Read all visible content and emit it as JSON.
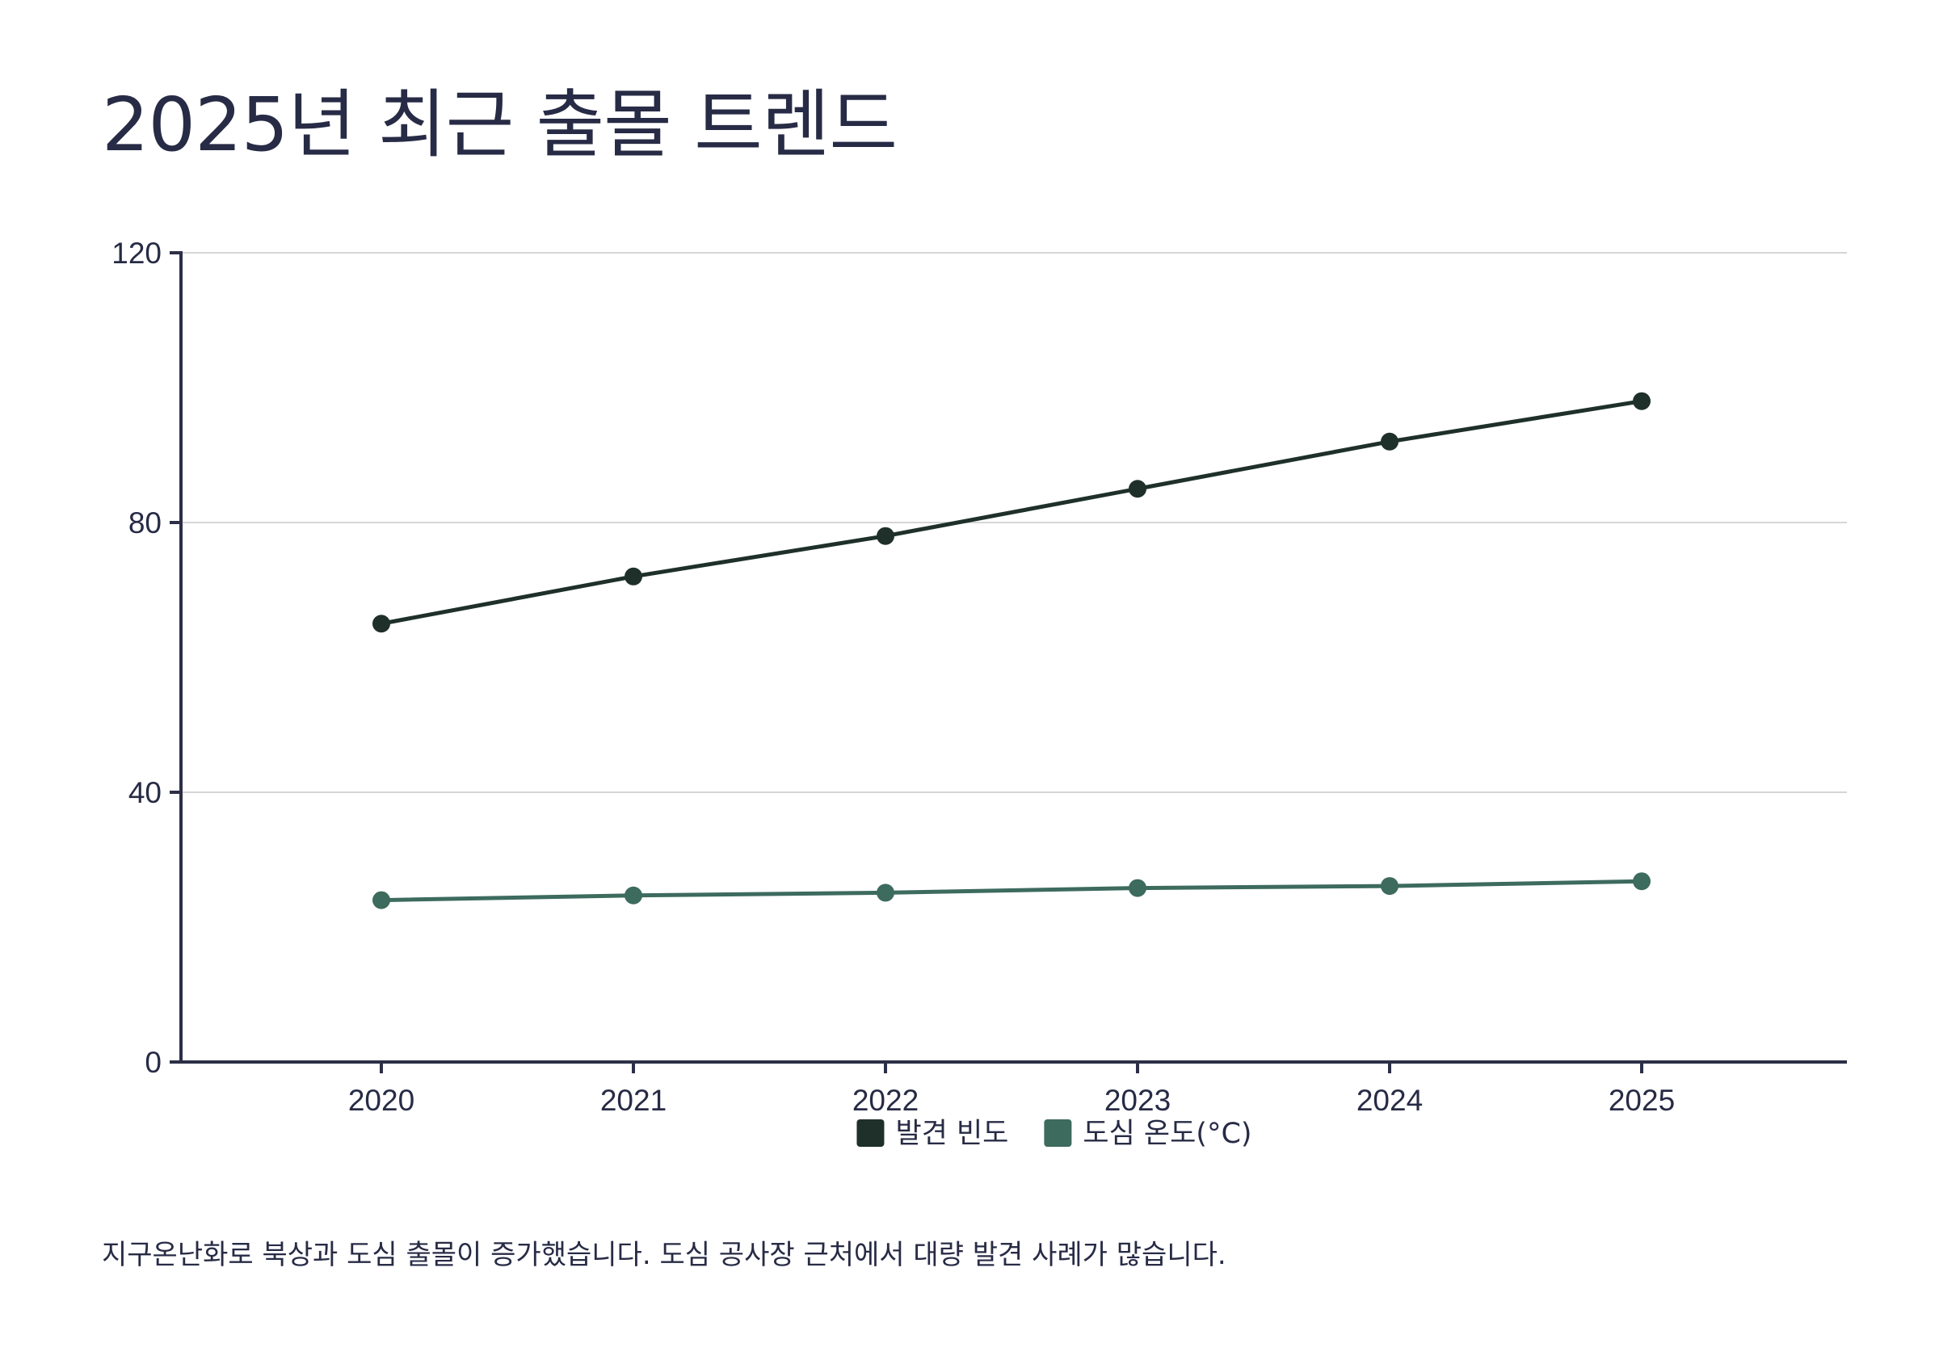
{
  "page": {
    "title": "2025년 최근 출몰 트렌드",
    "footnote": "지구온난화로 북상과 도심 출몰이 증가했습니다. 도심 공사장 근처에서 대량 발견 사례가 많습니다."
  },
  "colors": {
    "text": "#272b45",
    "axis": "#2c2f47",
    "grid": "#d6d6d6",
    "series_1": "#1e3029",
    "series_2": "#3d6b5e"
  },
  "chart_data": {
    "type": "line",
    "title": "2025년 최근 출몰 트렌드",
    "xlabel": "",
    "ylabel": "",
    "x": [
      "2020",
      "2021",
      "2022",
      "2023",
      "2024",
      "2025"
    ],
    "ylim": [
      0,
      120
    ],
    "yticks": [
      "0",
      "40",
      "80",
      "120"
    ],
    "grid": true,
    "legend_position": "bottom-center",
    "markers": true,
    "series": [
      {
        "name": "발견 빈도",
        "color": "#1e3029",
        "values": [
          65,
          72,
          78,
          85,
          92,
          98
        ]
      },
      {
        "name": "도심 온도(°C)",
        "color": "#3d6b5e",
        "values": [
          24,
          24.7,
          25.1,
          25.8,
          26.1,
          26.8
        ]
      }
    ]
  }
}
